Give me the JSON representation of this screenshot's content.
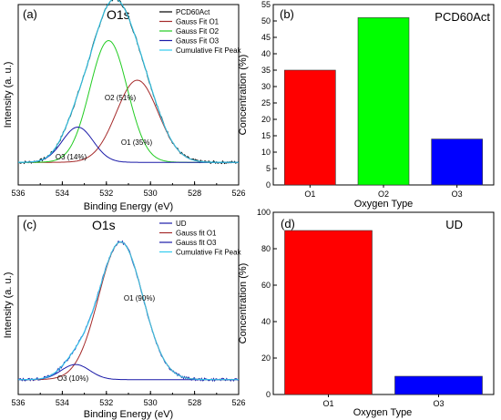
{
  "chart_data": [
    {
      "panel_label": "(a)",
      "type": "line",
      "title": "O1s",
      "xlabel": "Binding Energy (eV)",
      "ylabel": "Intensity (a. u.)",
      "xlim": [
        536,
        526
      ],
      "xticks": [
        536,
        534,
        532,
        530,
        528,
        526
      ],
      "y_tick_labels": "none",
      "legend": {
        "placement": "top-right",
        "entries": [
          {
            "label": "PCD60Act",
            "color": "#000000"
          },
          {
            "label": "Gauss Fit O1",
            "color": "#a52a2a"
          },
          {
            "label": "Gauss Fit O2",
            "color": "#22cc22"
          },
          {
            "label": "Gauss Fit O3",
            "color": "#1a1aa8"
          },
          {
            "label": "Cumulative Fit Peak",
            "color": "#33ccee"
          }
        ]
      },
      "peaks": [
        {
          "name": "O1",
          "center": 530.6,
          "sigma": 0.95,
          "height": 0.56,
          "color": "#a52a2a",
          "annotation": "O1 (35%)"
        },
        {
          "name": "O2",
          "center": 531.9,
          "sigma": 0.85,
          "height": 0.83,
          "color": "#22cc22",
          "annotation": "O2 (51%)"
        },
        {
          "name": "O3",
          "center": 533.3,
          "sigma": 0.7,
          "height": 0.24,
          "color": "#1a1aa8",
          "annotation": "O3 (14%)"
        }
      ],
      "baseline": 0.03
    },
    {
      "panel_label": "(b)",
      "type": "bar",
      "title": "PCD60Act",
      "xlabel": "Oxygen Type",
      "ylabel": "Concentration (%)",
      "ylim": [
        0,
        55
      ],
      "yticks": [
        0,
        5,
        10,
        15,
        20,
        25,
        30,
        35,
        40,
        45,
        50,
        55
      ],
      "categories": [
        "O1",
        "O2",
        "O3"
      ],
      "values": [
        35,
        51,
        14
      ],
      "colors": [
        "#ff0000",
        "#00ff00",
        "#0000ff"
      ]
    },
    {
      "panel_label": "(c)",
      "type": "line",
      "title": "O1s",
      "xlabel": "Binding Energy (eV)",
      "ylabel": "Intensity (a. u.)",
      "xlim": [
        536,
        526
      ],
      "xticks": [
        536,
        534,
        532,
        530,
        528,
        526
      ],
      "y_tick_labels": "none",
      "legend": {
        "placement": "top-right",
        "entries": [
          {
            "label": "UD",
            "color": "#1a1aa8"
          },
          {
            "label": "Gauss fit O1",
            "color": "#a52a2a"
          },
          {
            "label": "Gauss fit O3",
            "color": "#1a1aa8"
          },
          {
            "label": "Cumulative Fit Peak",
            "color": "#33ccee"
          }
        ]
      },
      "peaks": [
        {
          "name": "O1",
          "center": 531.35,
          "sigma": 1.0,
          "height": 0.91,
          "color": "#a52a2a",
          "annotation": "O1 (90%)"
        },
        {
          "name": "O3",
          "center": 533.4,
          "sigma": 0.65,
          "height": 0.1,
          "color": "#1a1aa8",
          "annotation": "O3 (10%)"
        }
      ],
      "baseline": 0.02
    },
    {
      "panel_label": "(d)",
      "type": "bar",
      "title": "UD",
      "xlabel": "Oxygen Type",
      "ylabel": "Concentration (%)",
      "ylim": [
        0,
        100
      ],
      "yticks": [
        0,
        20,
        40,
        60,
        80,
        100
      ],
      "categories": [
        "O1",
        "O3"
      ],
      "values": [
        90,
        10
      ],
      "colors": [
        "#ff0000",
        "#0000ff"
      ]
    }
  ]
}
